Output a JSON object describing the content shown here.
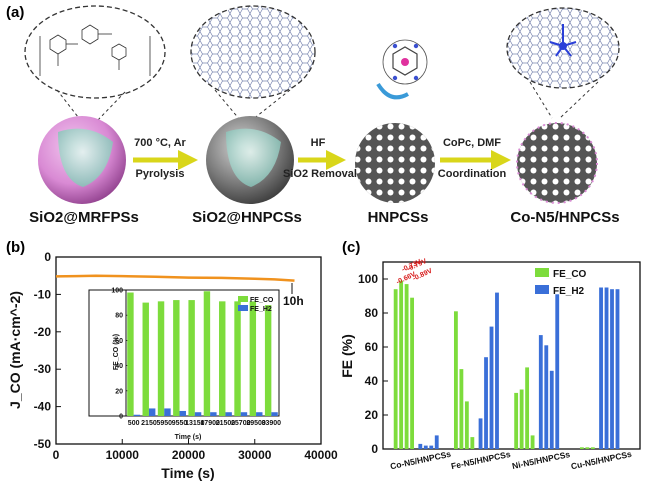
{
  "figure": {
    "panel_labels": [
      "(a)",
      "(b)",
      "(c)"
    ],
    "scheme": {
      "stages": [
        "SiO2@MRFPSs",
        "SiO2@HNPCSs",
        "HNPCSs",
        "Co-N5/HNPCSs"
      ],
      "steps": [
        {
          "top": "700 °C, Ar",
          "bottom": "Pyrolysis"
        },
        {
          "top": "HF",
          "bottom": "SiO2 Removal"
        },
        {
          "top": "CoPc, DMF",
          "bottom": "Coordination"
        }
      ]
    },
    "colors": {
      "co_bar": "#7ddc3c",
      "h2_bar": "#3a6fd8",
      "current_line": "#f0921e",
      "potential_text": "#d81b1b",
      "sphere_pink": "#d98ad4",
      "sphere_grey": "#6e6e6e",
      "arrow_yellow": "#d9d61a",
      "inner_cyan": "#a8d8cf"
    }
  },
  "chart_data": [
    {
      "id": "b",
      "type": "line",
      "xlabel": "Time (s)",
      "ylabel": "J_CO (mA·cm^-2)",
      "xlim": [
        0,
        40000
      ],
      "ylim": [
        -50,
        0
      ],
      "xticks": [
        0,
        10000,
        20000,
        30000,
        40000
      ],
      "yticks": [
        0,
        -10,
        -20,
        -30,
        -40,
        -50
      ],
      "series": [
        {
          "x": [
            0,
            3000,
            6000,
            10000,
            15000,
            20000,
            25000,
            30000,
            33000,
            36000
          ],
          "y": [
            -5.2,
            -5.1,
            -5.0,
            -5.1,
            -5.3,
            -5.5,
            -5.6,
            -5.8,
            -6.0,
            -6.3
          ]
        }
      ],
      "annotation": "10h",
      "inset": {
        "type": "bar",
        "ylabel": "FE_CO (%)",
        "xlabel": "Time (s)",
        "ylim": [
          0,
          100
        ],
        "yticks": [
          0,
          20,
          40,
          60,
          80,
          100
        ],
        "categories": [
          "500",
          "2150",
          "5950",
          "9550",
          "13150",
          "17900",
          "21500",
          "25700",
          "29500",
          "33900"
        ],
        "series": [
          {
            "name": "FE_CO",
            "values": [
              98,
              90,
              91,
              92,
              92,
              99,
              91,
              91,
              91,
              88
            ]
          },
          {
            "name": "FE_H2",
            "values": [
              1,
              6,
              6,
              4,
              3,
              3,
              3,
              3,
              3,
              3
            ]
          }
        ]
      }
    },
    {
      "id": "c",
      "type": "bar",
      "ylabel": "FE (%)",
      "ylim": [
        0,
        110
      ],
      "yticks": [
        0,
        20,
        40,
        60,
        80,
        100
      ],
      "groups": [
        "Co-N5/HNPCSs",
        "Fe-N5/HNPCSs",
        "Ni-N5/HNPCSs",
        "Cu-N5/HNPCSs"
      ],
      "potentials": [
        "-0.66V",
        "-0.73V",
        "-0.79V",
        "-0.89V"
      ],
      "series": [
        {
          "name": "FE_CO",
          "values": [
            [
              94,
              99,
              97,
              89,
              0
            ],
            [
              81,
              47,
              28,
              7,
              0
            ],
            [
              33,
              35,
              48,
              8,
              0
            ],
            [
              0,
              1,
              1,
              1,
              0
            ]
          ]
        },
        {
          "name": "FE_H2",
          "values": [
            [
              3,
              2,
              2,
              8,
              0
            ],
            [
              18,
              54,
              72,
              92,
              0
            ],
            [
              67,
              61,
              46,
              91,
              0
            ],
            [
              95,
              95,
              94,
              94,
              0
            ]
          ]
        }
      ]
    }
  ]
}
